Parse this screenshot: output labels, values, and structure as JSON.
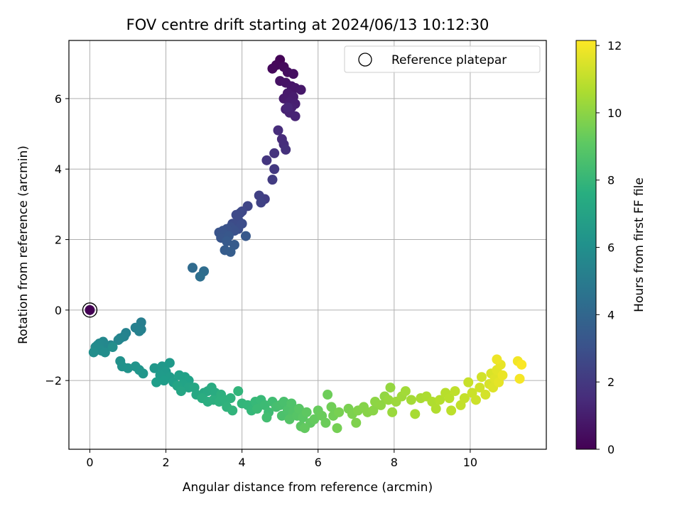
{
  "chart_data": {
    "type": "scatter",
    "title": "FOV centre drift starting at 2024/06/13 10:12:30",
    "xlabel": "Angular distance from reference (arcmin)",
    "ylabel": "Rotation from reference (arcmin)",
    "xlim": [
      -0.55,
      12.0
    ],
    "ylim": [
      -3.95,
      7.65
    ],
    "xticks": [
      0,
      2,
      4,
      6,
      8,
      10
    ],
    "yticks": [
      -2,
      0,
      2,
      4,
      6
    ],
    "grid": true,
    "legend": {
      "position": "top-right",
      "label": "Reference platepar"
    },
    "colorbar": {
      "label": "Hours from first FF file",
      "range": [
        0,
        12.15
      ],
      "ticks": [
        0,
        2,
        4,
        6,
        8,
        10,
        12
      ],
      "colormap": "viridis"
    },
    "reference_point": {
      "x": 0,
      "y": 0,
      "hours": 0
    },
    "series": [
      {
        "fields": [
          "x",
          "y",
          "hours"
        ],
        "points": [
          [
            5.0,
            7.1,
            0.1
          ],
          [
            4.9,
            6.95,
            0.2
          ],
          [
            4.8,
            6.85,
            0.25
          ],
          [
            5.1,
            6.9,
            0.3
          ],
          [
            5.2,
            6.75,
            0.4
          ],
          [
            5.35,
            6.7,
            0.5
          ],
          [
            5.0,
            6.5,
            0.6
          ],
          [
            5.15,
            6.45,
            0.65
          ],
          [
            5.3,
            6.35,
            0.7
          ],
          [
            5.4,
            6.3,
            0.75
          ],
          [
            5.55,
            6.25,
            0.8
          ],
          [
            5.2,
            6.15,
            0.85
          ],
          [
            5.1,
            6.0,
            0.9
          ],
          [
            5.35,
            6.05,
            0.95
          ],
          [
            5.25,
            5.9,
            1.0
          ],
          [
            5.4,
            5.85,
            1.05
          ],
          [
            5.3,
            5.75,
            1.1
          ],
          [
            5.15,
            5.7,
            1.15
          ],
          [
            5.25,
            5.6,
            1.2
          ],
          [
            5.4,
            5.5,
            1.25
          ],
          [
            5.2,
            5.75,
            1.3
          ],
          [
            5.05,
            4.85,
            1.5
          ],
          [
            4.95,
            5.1,
            1.55
          ],
          [
            5.1,
            4.7,
            1.6
          ],
          [
            5.15,
            4.55,
            1.7
          ],
          [
            4.85,
            4.45,
            1.8
          ],
          [
            4.65,
            4.25,
            1.9
          ],
          [
            4.85,
            4.0,
            2.0
          ],
          [
            4.8,
            3.7,
            2.1
          ],
          [
            4.6,
            3.15,
            2.2
          ],
          [
            4.45,
            3.25,
            2.3
          ],
          [
            4.5,
            3.05,
            2.4
          ],
          [
            4.15,
            2.95,
            2.5
          ],
          [
            4.0,
            2.8,
            2.6
          ],
          [
            3.95,
            2.75,
            2.65
          ],
          [
            3.85,
            2.7,
            2.7
          ],
          [
            3.9,
            2.55,
            2.75
          ],
          [
            3.75,
            2.45,
            2.8
          ],
          [
            4.0,
            2.45,
            2.85
          ],
          [
            3.9,
            2.3,
            2.9
          ],
          [
            3.7,
            2.35,
            2.95
          ],
          [
            3.8,
            2.25,
            3.0
          ],
          [
            3.6,
            2.3,
            3.05
          ],
          [
            3.5,
            2.25,
            3.1
          ],
          [
            3.4,
            2.2,
            3.15
          ],
          [
            3.55,
            2.15,
            3.2
          ],
          [
            3.45,
            2.05,
            3.25
          ],
          [
            3.65,
            2.1,
            3.3
          ],
          [
            4.1,
            2.1,
            3.35
          ],
          [
            3.6,
            1.95,
            3.4
          ],
          [
            3.8,
            1.85,
            3.45
          ],
          [
            3.55,
            1.7,
            3.5
          ],
          [
            3.7,
            1.65,
            3.55
          ],
          [
            2.7,
            1.2,
            4.2
          ],
          [
            3.0,
            1.1,
            4.3
          ],
          [
            2.9,
            0.95,
            4.4
          ],
          [
            1.35,
            -0.35,
            5.2
          ],
          [
            1.35,
            -0.55,
            5.25
          ],
          [
            1.2,
            -0.5,
            5.3
          ],
          [
            1.3,
            -0.6,
            5.35
          ],
          [
            0.95,
            -0.65,
            5.4
          ],
          [
            0.9,
            -0.75,
            5.45
          ],
          [
            0.8,
            -0.8,
            5.5
          ],
          [
            0.75,
            -0.85,
            5.55
          ],
          [
            0.55,
            -1.0,
            5.6
          ],
          [
            0.45,
            -1.05,
            5.65
          ],
          [
            0.35,
            -0.9,
            5.7
          ],
          [
            0.25,
            -0.95,
            5.75
          ],
          [
            0.2,
            -1.0,
            5.8
          ],
          [
            0.15,
            -1.05,
            5.85
          ],
          [
            0.3,
            -1.15,
            5.9
          ],
          [
            0.4,
            -1.2,
            5.95
          ],
          [
            0.1,
            -1.2,
            6.0
          ],
          [
            0.6,
            -1.05,
            6.05
          ],
          [
            0.8,
            -1.45,
            6.1
          ],
          [
            0.85,
            -1.6,
            6.15
          ],
          [
            1.0,
            -1.65,
            6.2
          ],
          [
            1.2,
            -1.6,
            6.25
          ],
          [
            1.3,
            -1.7,
            6.3
          ],
          [
            1.4,
            -1.8,
            6.35
          ],
          [
            1.7,
            -1.65,
            6.4
          ],
          [
            1.9,
            -1.6,
            6.45
          ],
          [
            2.1,
            -1.5,
            6.5
          ],
          [
            2.0,
            -1.75,
            6.55
          ],
          [
            1.85,
            -1.85,
            6.6
          ],
          [
            2.1,
            -1.9,
            6.65
          ],
          [
            1.95,
            -2.0,
            6.7
          ],
          [
            1.75,
            -2.05,
            6.75
          ],
          [
            2.2,
            -2.05,
            6.8
          ],
          [
            2.35,
            -1.85,
            6.85
          ],
          [
            2.5,
            -1.9,
            6.9
          ],
          [
            2.6,
            -2.0,
            6.95
          ],
          [
            2.45,
            -2.1,
            7.0
          ],
          [
            2.3,
            -2.15,
            7.05
          ],
          [
            2.6,
            -2.2,
            7.1
          ],
          [
            2.4,
            -2.3,
            7.15
          ],
          [
            2.75,
            -2.2,
            7.2
          ],
          [
            2.8,
            -2.4,
            7.25
          ],
          [
            3.0,
            -2.35,
            7.3
          ],
          [
            3.1,
            -2.3,
            7.35
          ],
          [
            3.2,
            -2.2,
            7.4
          ],
          [
            3.3,
            -2.35,
            7.45
          ],
          [
            2.95,
            -2.5,
            7.5
          ],
          [
            3.1,
            -2.6,
            7.55
          ],
          [
            3.25,
            -2.55,
            7.6
          ],
          [
            3.45,
            -2.4,
            7.65
          ],
          [
            3.4,
            -2.6,
            7.7
          ],
          [
            3.55,
            -2.55,
            7.75
          ],
          [
            3.7,
            -2.5,
            7.8
          ],
          [
            3.6,
            -2.75,
            7.85
          ],
          [
            3.75,
            -2.85,
            7.9
          ],
          [
            3.9,
            -2.3,
            7.95
          ],
          [
            4.0,
            -2.65,
            8.0
          ],
          [
            4.15,
            -2.7,
            8.05
          ],
          [
            4.25,
            -2.85,
            8.1
          ],
          [
            4.35,
            -2.6,
            8.15
          ],
          [
            4.5,
            -2.55,
            8.2
          ],
          [
            4.4,
            -2.8,
            8.25
          ],
          [
            4.6,
            -2.7,
            8.3
          ],
          [
            4.7,
            -2.9,
            8.35
          ],
          [
            4.8,
            -2.6,
            8.4
          ],
          [
            4.65,
            -3.05,
            8.45
          ],
          [
            4.9,
            -2.75,
            8.5
          ],
          [
            5.0,
            -2.7,
            8.55
          ],
          [
            5.1,
            -2.6,
            8.6
          ],
          [
            5.05,
            -3.0,
            8.65
          ],
          [
            5.2,
            -2.85,
            8.7
          ],
          [
            5.3,
            -2.65,
            8.75
          ],
          [
            5.35,
            -2.9,
            8.8
          ],
          [
            5.25,
            -3.1,
            8.85
          ],
          [
            5.45,
            -3.0,
            8.9
          ],
          [
            5.5,
            -2.8,
            8.95
          ],
          [
            5.6,
            -3.05,
            9.0
          ],
          [
            5.55,
            -3.3,
            9.05
          ],
          [
            5.7,
            -2.9,
            9.1
          ],
          [
            5.8,
            -3.2,
            9.15
          ],
          [
            5.65,
            -3.35,
            9.2
          ],
          [
            5.9,
            -3.1,
            9.25
          ],
          [
            6.0,
            -2.85,
            9.3
          ],
          [
            6.1,
            -3.0,
            9.35
          ],
          [
            6.2,
            -3.2,
            9.4
          ],
          [
            6.25,
            -2.4,
            9.45
          ],
          [
            6.35,
            -2.75,
            9.5
          ],
          [
            6.4,
            -3.0,
            9.55
          ],
          [
            6.5,
            -3.35,
            9.6
          ],
          [
            6.55,
            -2.9,
            9.65
          ],
          [
            6.8,
            -2.8,
            9.7
          ],
          [
            6.9,
            -2.95,
            9.75
          ],
          [
            7.0,
            -3.2,
            9.8
          ],
          [
            7.05,
            -2.85,
            9.85
          ],
          [
            7.2,
            -2.75,
            9.9
          ],
          [
            7.3,
            -2.9,
            9.95
          ],
          [
            7.45,
            -2.85,
            10.0
          ],
          [
            7.5,
            -2.6,
            10.05
          ],
          [
            7.65,
            -2.7,
            10.1
          ],
          [
            7.75,
            -2.45,
            10.15
          ],
          [
            7.9,
            -2.2,
            10.2
          ],
          [
            7.85,
            -2.55,
            10.25
          ],
          [
            7.95,
            -2.9,
            10.3
          ],
          [
            8.05,
            -2.6,
            10.35
          ],
          [
            8.2,
            -2.45,
            10.4
          ],
          [
            8.3,
            -2.3,
            10.45
          ],
          [
            8.45,
            -2.55,
            10.5
          ],
          [
            8.55,
            -2.95,
            10.55
          ],
          [
            8.7,
            -2.5,
            10.6
          ],
          [
            8.85,
            -2.45,
            10.65
          ],
          [
            9.0,
            -2.6,
            10.7
          ],
          [
            9.1,
            -2.8,
            10.75
          ],
          [
            9.2,
            -2.55,
            10.8
          ],
          [
            9.35,
            -2.35,
            10.85
          ],
          [
            9.45,
            -2.5,
            10.9
          ],
          [
            9.5,
            -2.85,
            10.95
          ],
          [
            9.6,
            -2.3,
            11.0
          ],
          [
            9.75,
            -2.7,
            11.05
          ],
          [
            9.85,
            -2.5,
            11.1
          ],
          [
            9.95,
            -2.05,
            11.15
          ],
          [
            10.05,
            -2.35,
            11.2
          ],
          [
            10.15,
            -2.55,
            11.25
          ],
          [
            10.25,
            -2.2,
            11.3
          ],
          [
            10.3,
            -1.9,
            11.35
          ],
          [
            10.4,
            -2.4,
            11.4
          ],
          [
            10.5,
            -2.1,
            11.45
          ],
          [
            10.55,
            -1.8,
            11.5
          ],
          [
            10.6,
            -2.2,
            11.55
          ],
          [
            10.65,
            -1.95,
            11.6
          ],
          [
            10.7,
            -1.7,
            11.65
          ],
          [
            10.75,
            -2.05,
            11.7
          ],
          [
            10.8,
            -1.55,
            11.75
          ],
          [
            10.85,
            -1.85,
            11.8
          ],
          [
            10.7,
            -1.4,
            11.85
          ],
          [
            11.25,
            -1.45,
            11.95
          ],
          [
            11.3,
            -1.95,
            12.0
          ],
          [
            11.35,
            -1.55,
            12.1
          ]
        ]
      }
    ]
  }
}
